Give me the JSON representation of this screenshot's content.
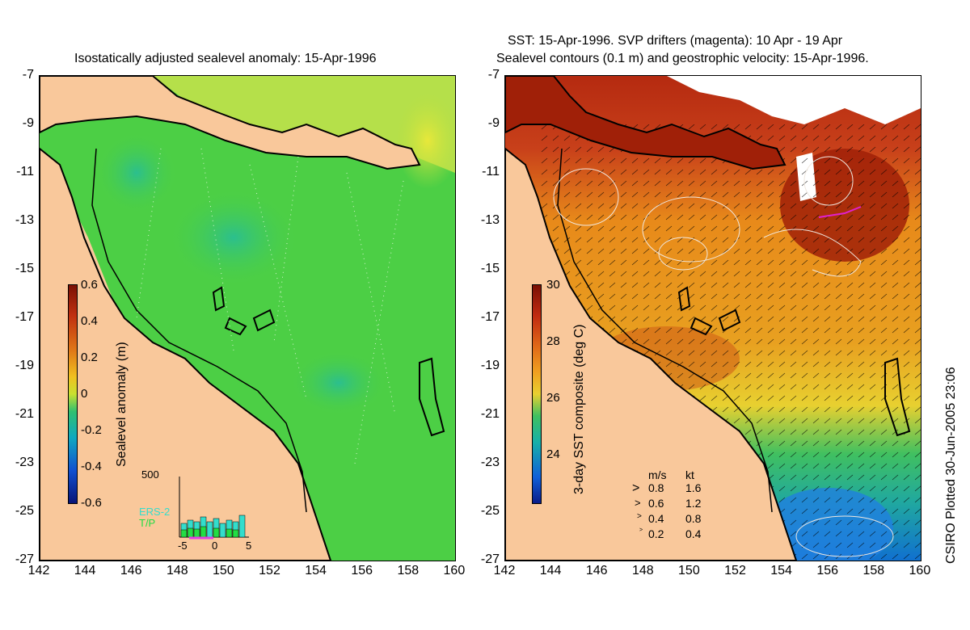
{
  "left_panel": {
    "title": "Isostatically adjusted sealevel anomaly: 15-Apr-1996",
    "colorbar_label": "Sealevel anomaly (m)",
    "colorbar_ticks": [
      "0.6",
      "0.4",
      "0.2",
      "0",
      "-0.2",
      "-0.4",
      "-0.6"
    ],
    "histogram": {
      "ymax_label": "500",
      "series": [
        "ERS-2",
        "T/P"
      ],
      "series_colors": [
        "#33ddcc",
        "#22dd44"
      ],
      "xticks": [
        "-5",
        "0",
        "5"
      ]
    }
  },
  "right_panel": {
    "title_line1": "SST: 15-Apr-1996. SVP drifters (magenta): 10 Apr - 19 Apr",
    "title_line2": "Sealevel contours (0.1 m) and geostrophic velocity: 15-Apr-1996.",
    "colorbar_label": "3-day SST composite (deg C)",
    "colorbar_ticks": [
      "30",
      "28",
      "26",
      "24"
    ],
    "velocity_legend": {
      "header": [
        "m/s",
        "kt"
      ],
      "rows": [
        [
          "0.8",
          "1.6"
        ],
        [
          "0.6",
          "1.2"
        ],
        [
          "0.4",
          "0.8"
        ],
        [
          "0.2",
          "0.4"
        ]
      ]
    }
  },
  "axes": {
    "y_ticks": [
      "-7",
      "-9",
      "-11",
      "-13",
      "-15",
      "-17",
      "-19",
      "-21",
      "-23",
      "-25",
      "-27"
    ],
    "x_ticks": [
      "142",
      "144",
      "146",
      "148",
      "150",
      "152",
      "154",
      "156",
      "158",
      "160"
    ]
  },
  "credit": "CSIRO Plotted 30-Jun-2005 23:06",
  "colors": {
    "land": "#f9c89b",
    "sealevel_sea": "#4ccf45",
    "sst_warm": "#b52a10",
    "sst_mid": "#e88a1a"
  }
}
